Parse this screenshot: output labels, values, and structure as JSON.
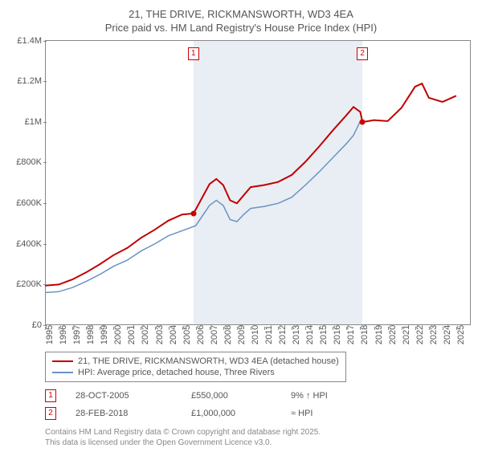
{
  "title": {
    "line1": "21, THE DRIVE, RICKMANSWORTH, WD3 4EA",
    "line2": "Price paid vs. HM Land Registry's House Price Index (HPI)",
    "fontsize": 13
  },
  "chart": {
    "type": "line",
    "ylim": [
      0,
      1400000
    ],
    "ytick_step": 200000,
    "yticks": [
      "£0",
      "£200K",
      "£400K",
      "£600K",
      "£800K",
      "£1M",
      "£1.2M",
      "£1.4M"
    ],
    "xlim": [
      1995,
      2026
    ],
    "xticks": [
      1995,
      1996,
      1997,
      1998,
      1999,
      2000,
      2001,
      2002,
      2003,
      2004,
      2005,
      2006,
      2007,
      2008,
      2009,
      2010,
      2011,
      2012,
      2013,
      2014,
      2015,
      2016,
      2017,
      2018,
      2019,
      2020,
      2021,
      2022,
      2023,
      2024,
      2025
    ],
    "shaded": {
      "start": 2005.83,
      "end": 2018.16,
      "color": "#e9eef4"
    },
    "series": [
      {
        "name": "price_paid",
        "color": "#c00000",
        "width": 2,
        "data": [
          [
            1995,
            195000
          ],
          [
            1996,
            200000
          ],
          [
            1997,
            225000
          ],
          [
            1998,
            260000
          ],
          [
            1999,
            300000
          ],
          [
            2000,
            345000
          ],
          [
            2001,
            380000
          ],
          [
            2002,
            430000
          ],
          [
            2003,
            470000
          ],
          [
            2004,
            515000
          ],
          [
            2005,
            545000
          ],
          [
            2005.83,
            550000
          ],
          [
            2006,
            570000
          ],
          [
            2007,
            695000
          ],
          [
            2007.5,
            720000
          ],
          [
            2008,
            690000
          ],
          [
            2008.5,
            615000
          ],
          [
            2009,
            600000
          ],
          [
            2009.5,
            640000
          ],
          [
            2010,
            680000
          ],
          [
            2011,
            690000
          ],
          [
            2012,
            705000
          ],
          [
            2013,
            740000
          ],
          [
            2014,
            805000
          ],
          [
            2015,
            880000
          ],
          [
            2016,
            960000
          ],
          [
            2017,
            1035000
          ],
          [
            2017.5,
            1075000
          ],
          [
            2018,
            1050000
          ],
          [
            2018.16,
            1000000
          ],
          [
            2019,
            1010000
          ],
          [
            2020,
            1005000
          ],
          [
            2021,
            1070000
          ],
          [
            2022,
            1175000
          ],
          [
            2022.5,
            1190000
          ],
          [
            2023,
            1120000
          ],
          [
            2024,
            1100000
          ],
          [
            2025,
            1130000
          ]
        ]
      },
      {
        "name": "hpi",
        "color": "#6a94c2",
        "width": 1.5,
        "data": [
          [
            1995,
            160000
          ],
          [
            1996,
            165000
          ],
          [
            1997,
            185000
          ],
          [
            1998,
            215000
          ],
          [
            1999,
            250000
          ],
          [
            2000,
            290000
          ],
          [
            2001,
            320000
          ],
          [
            2002,
            365000
          ],
          [
            2003,
            400000
          ],
          [
            2004,
            440000
          ],
          [
            2005,
            465000
          ],
          [
            2006,
            490000
          ],
          [
            2007,
            590000
          ],
          [
            2007.5,
            615000
          ],
          [
            2008,
            590000
          ],
          [
            2008.5,
            520000
          ],
          [
            2009,
            510000
          ],
          [
            2009.5,
            545000
          ],
          [
            2010,
            575000
          ],
          [
            2011,
            585000
          ],
          [
            2012,
            600000
          ],
          [
            2013,
            630000
          ],
          [
            2014,
            690000
          ],
          [
            2015,
            755000
          ],
          [
            2016,
            825000
          ],
          [
            2017,
            895000
          ],
          [
            2017.5,
            935000
          ],
          [
            2018,
            1005000
          ]
        ]
      }
    ],
    "markers": [
      {
        "id": "1",
        "x": 2005.83,
        "y": 550000
      },
      {
        "id": "2",
        "x": 2018.16,
        "y": 1000000
      }
    ]
  },
  "legend": {
    "items": [
      {
        "color": "#c00000",
        "label": "21, THE DRIVE, RICKMANSWORTH, WD3 4EA (detached house)"
      },
      {
        "color": "#6a94c2",
        "label": "HPI: Average price, detached house, Three Rivers"
      }
    ]
  },
  "transactions": [
    {
      "id": "1",
      "date": "28-OCT-2005",
      "price": "£550,000",
      "note": "9% ↑ HPI"
    },
    {
      "id": "2",
      "date": "28-FEB-2018",
      "price": "£1,000,000",
      "note": "≈ HPI"
    }
  ],
  "footer": {
    "line1": "Contains HM Land Registry data © Crown copyright and database right 2025.",
    "line2": "This data is licensed under the Open Government Licence v3.0."
  }
}
